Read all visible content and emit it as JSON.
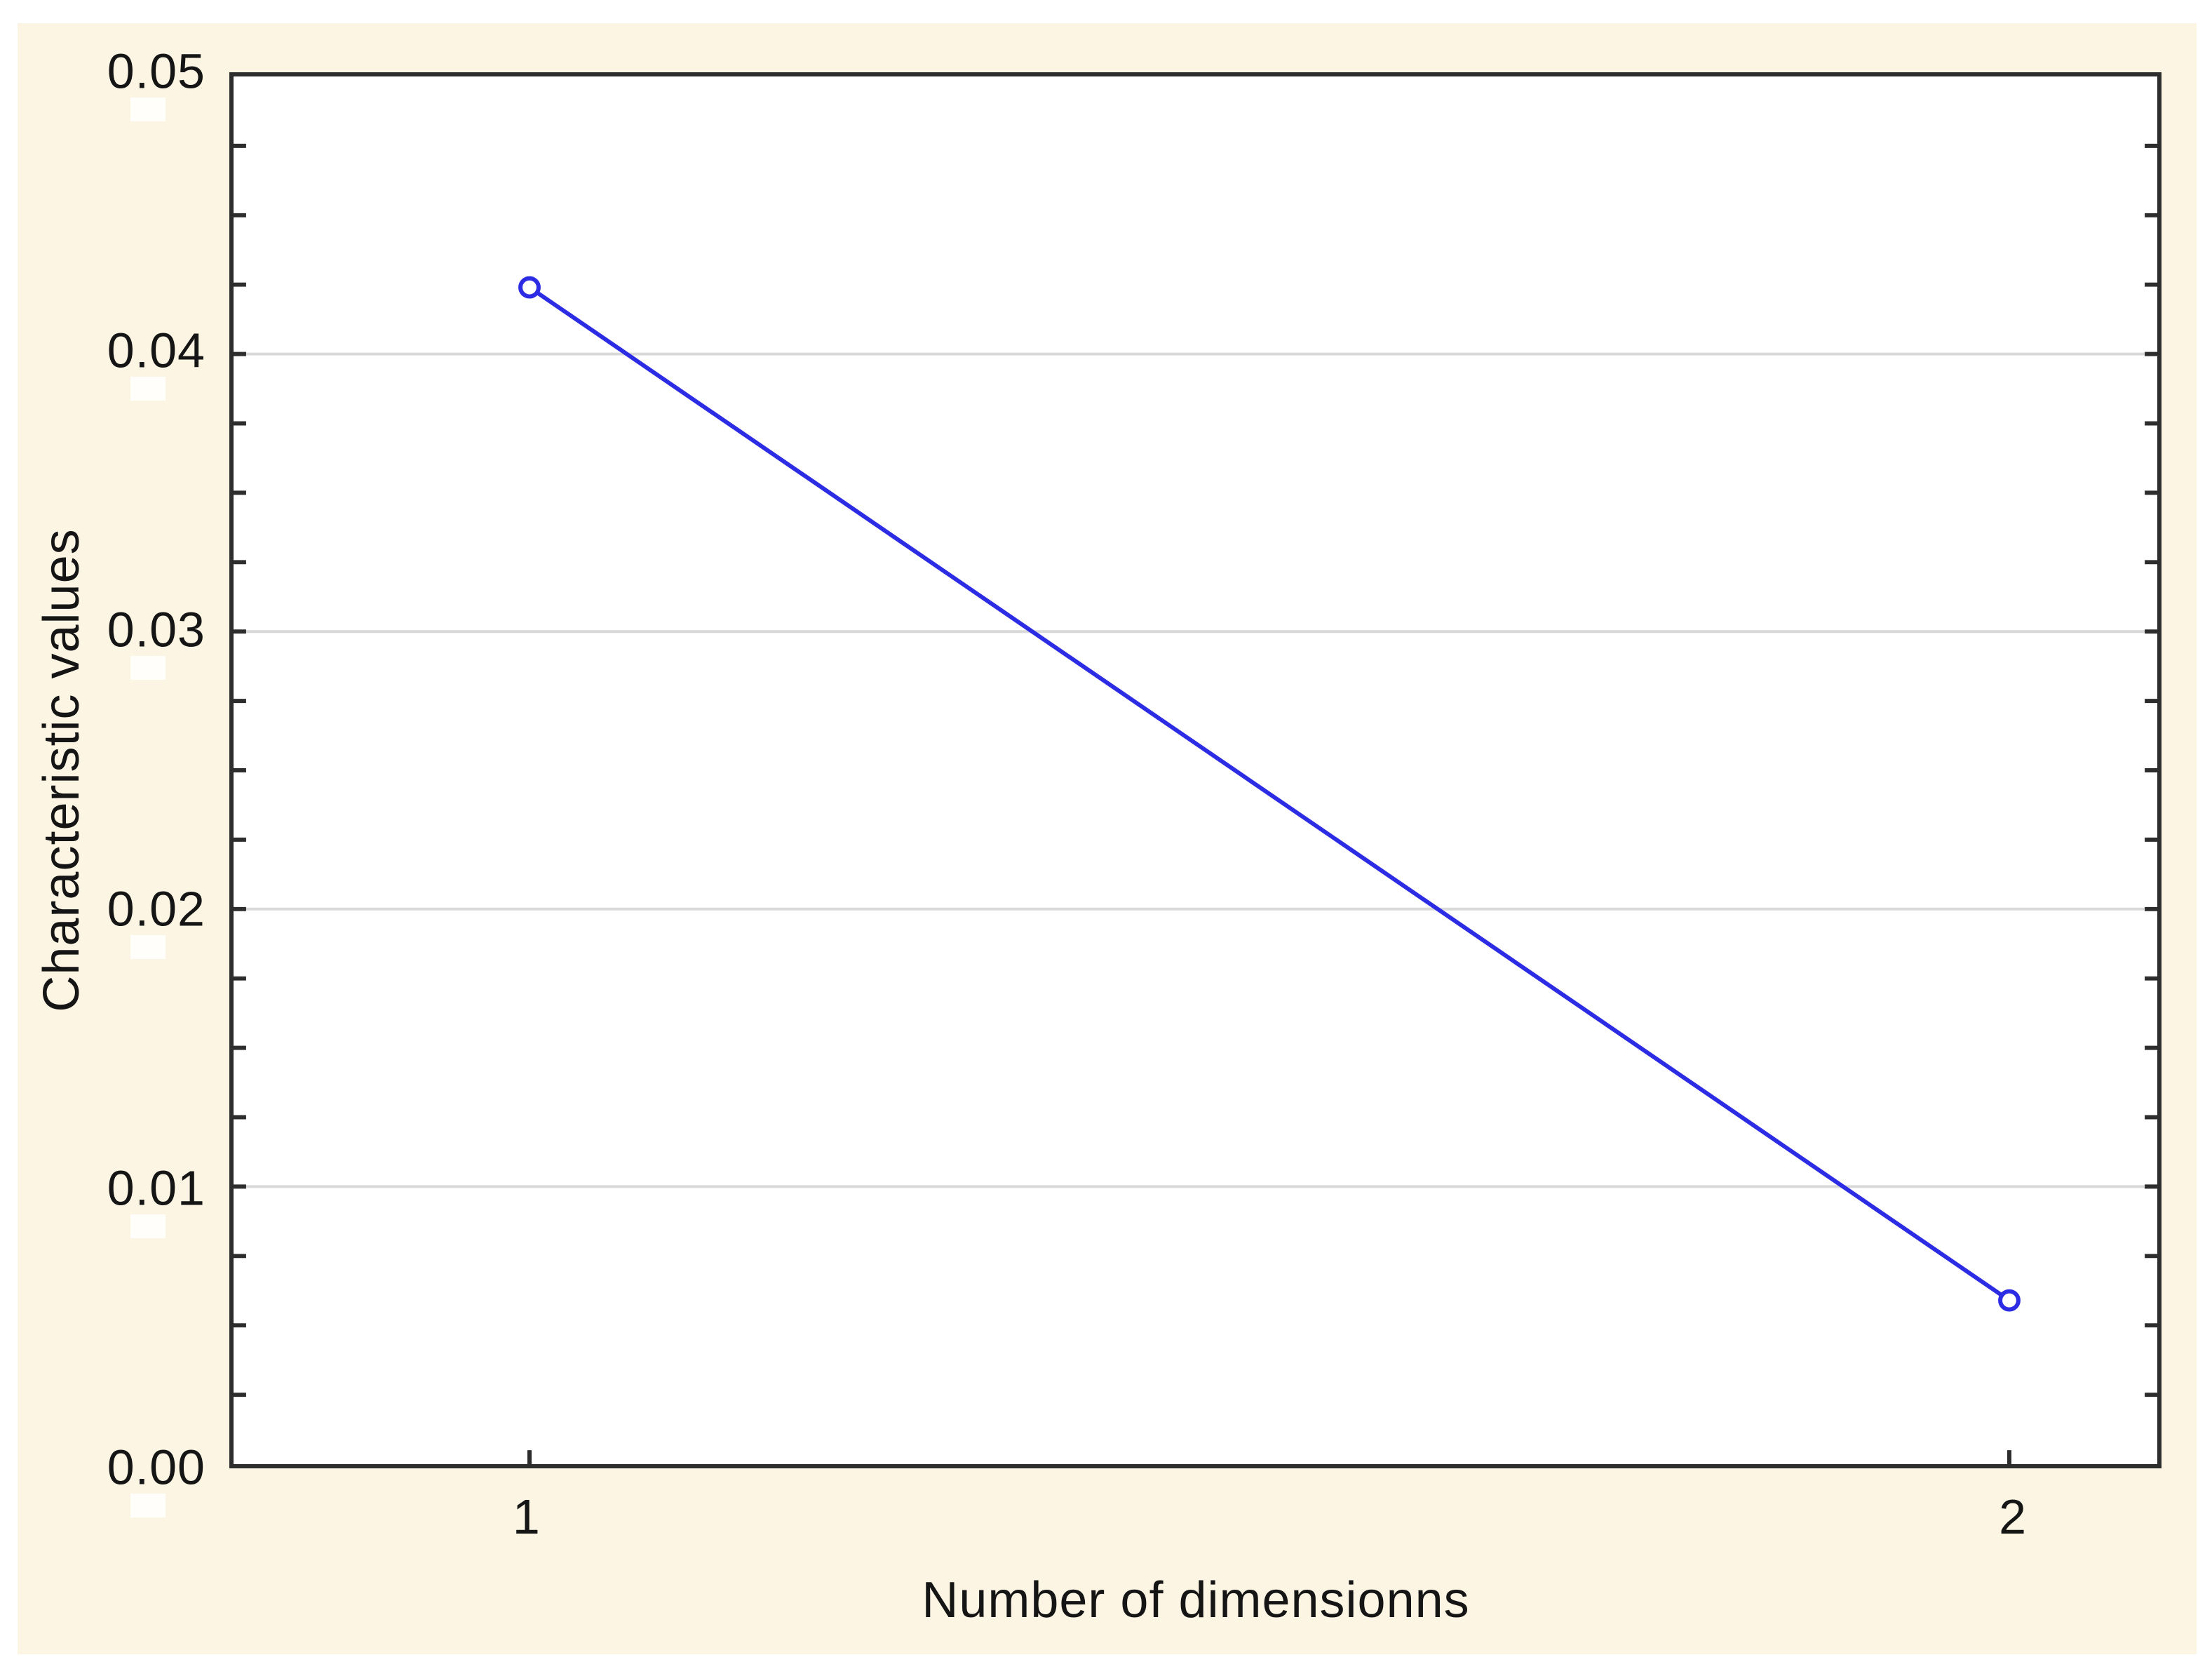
{
  "figure": {
    "page_background": "#ffffff",
    "panel_background": "#fcf5e4",
    "plot_background": "#ffffff"
  },
  "chart_data": {
    "type": "line",
    "title": "",
    "xlabel": "Number of dimensionns",
    "ylabel": "Characteristic values",
    "x": [
      1,
      2
    ],
    "series": [
      {
        "name": "Characteristic values",
        "values": [
          0.0424,
          0.0059
        ]
      }
    ],
    "x_tick_labels": [
      "1",
      "2"
    ],
    "y_ticks": [
      0,
      0.01,
      0.02,
      0.03,
      0.04,
      0.05
    ],
    "y_tick_labels": [
      "0.00",
      "0.01",
      "0.02",
      "0.03",
      "0.04",
      "0.05"
    ],
    "xlim": [
      0.8,
      2.1
    ],
    "ylim": [
      0,
      0.05
    ],
    "y_minor_step": 0.0025,
    "grid": "horizontal-major",
    "legend": "none",
    "marker": "open-circle",
    "colors": {
      "line": "#2c2ce4",
      "marker": "#2c2ce4",
      "gridline": "#d9d9d9",
      "axis_border": "#2d2d2d",
      "text": "#151515"
    }
  }
}
